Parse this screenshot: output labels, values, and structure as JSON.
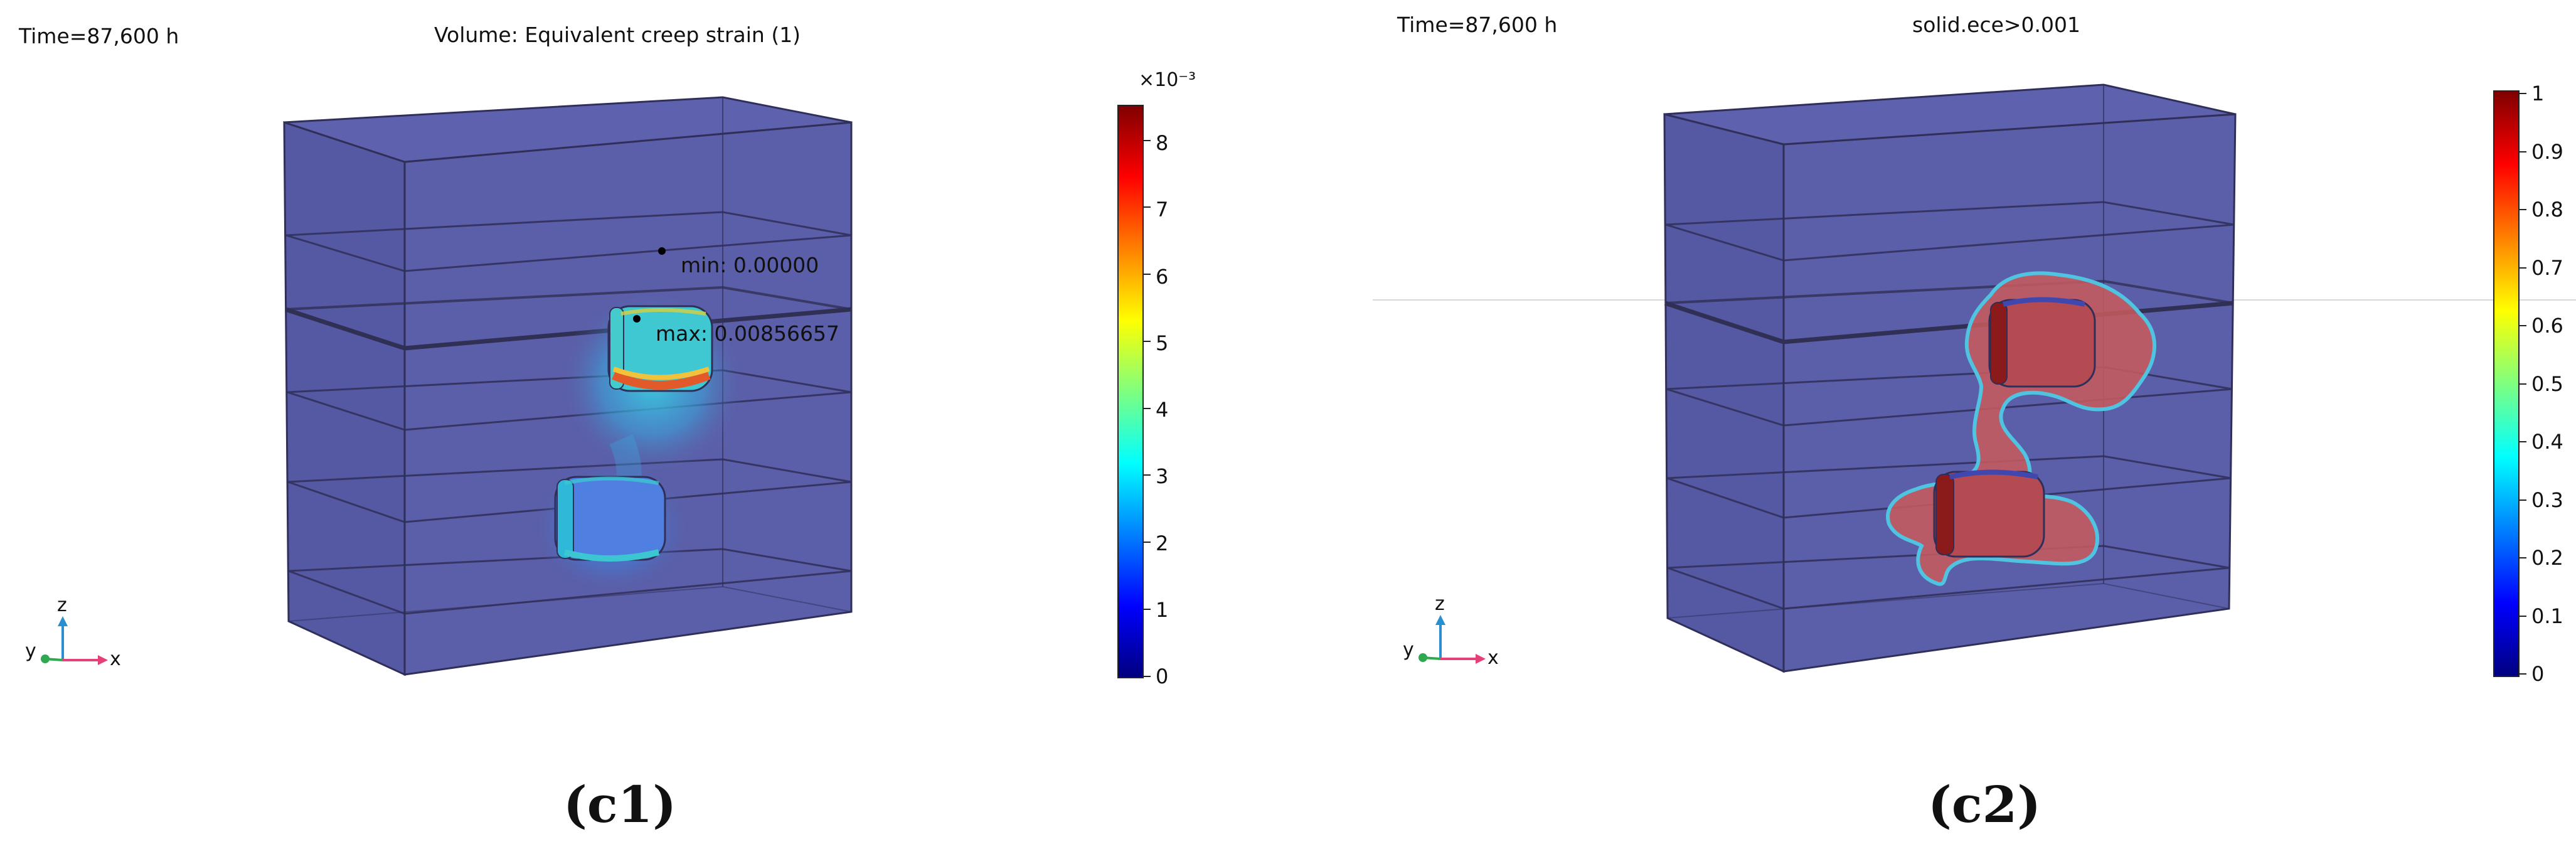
{
  "panels": [
    {
      "id": "c1",
      "time_label": "Time=87,600 h",
      "title": "Volume: Equivalent creep strain (1)",
      "min_label": "min: 0.00000",
      "max_label": "max: 0.00856657",
      "colorbar": {
        "multiplier": "×10⁻³",
        "range": [
          0,
          8.56657
        ],
        "ticks": [
          "0",
          "1",
          "2",
          "3",
          "4",
          "5",
          "6",
          "7",
          "8"
        ]
      },
      "axes": {
        "z": "z",
        "y": "y",
        "x": "x"
      },
      "sublabel": "(c1)"
    },
    {
      "id": "c2",
      "time_label": "Time=87,600 h",
      "title": "solid.ece>0.001",
      "colorbar": {
        "multiplier": "",
        "range": [
          0,
          1
        ],
        "ticks": [
          "0",
          "0.1",
          "0.2",
          "0.3",
          "0.4",
          "0.5",
          "0.6",
          "0.7",
          "0.8",
          "0.9",
          "1"
        ]
      },
      "axes": {
        "z": "z",
        "y": "y",
        "x": "x"
      },
      "sublabel": "(c2)"
    }
  ],
  "colors": {
    "box_fill": "#5b5ea8",
    "box_edge": "#30305a",
    "highlight_red": "#c23b3b",
    "strain_cyan": "#39c6d6",
    "axis_x": "#e5407a",
    "axis_y": "#2fa84f",
    "axis_z": "#2a8fd0",
    "colormap": "jet"
  }
}
